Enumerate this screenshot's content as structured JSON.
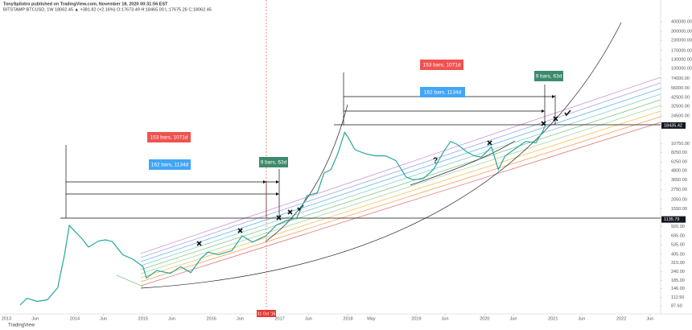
{
  "header": {
    "author_line": "TonySpilotro published on TradingView.com, November 18, 2020 00:31:56 EST",
    "symbol_line": "BITSTAMP:BTCUSD, 1W 18062.45 ▲ +381.82 (+2.16%) O:17673.49 H:18465.00 L:17675.26 C:18062.45"
  },
  "footer": {
    "brand": "TradingView"
  },
  "chart_data": {
    "type": "line",
    "log_scale": true,
    "grid": false,
    "xlim": [
      2012.906,
      2022.575
    ],
    "ylim": [
      69,
      600000
    ],
    "xticks": [
      {
        "value": 2013,
        "label": "2013"
      },
      {
        "value": 2013.42,
        "label": "Jun"
      },
      {
        "value": 2014,
        "label": "2014"
      },
      {
        "value": 2014.42,
        "label": "Jun"
      },
      {
        "value": 2015,
        "label": "2015"
      },
      {
        "value": 2015.42,
        "label": "Jun"
      },
      {
        "value": 2016,
        "label": "2016"
      },
      {
        "value": 2016.42,
        "label": "Jun"
      },
      {
        "value": 2017,
        "label": "2017"
      },
      {
        "value": 2017.42,
        "label": "Jun"
      },
      {
        "value": 2018,
        "label": "2018"
      },
      {
        "value": 2018.34,
        "label": "May"
      },
      {
        "value": 2019,
        "label": "2019"
      },
      {
        "value": 2019.42,
        "label": "Jun"
      },
      {
        "value": 2020,
        "label": "2020"
      },
      {
        "value": 2020.42,
        "label": "Jun"
      },
      {
        "value": 2021,
        "label": "2021"
      },
      {
        "value": 2021.42,
        "label": "Jun"
      },
      {
        "value": 2022,
        "label": "2022"
      },
      {
        "value": 2022.42,
        "label": "Jun"
      }
    ],
    "yticks": [
      {
        "value": 87.6,
        "label": "87.60"
      },
      {
        "value": 112.5,
        "label": "112.50"
      },
      {
        "value": 146,
        "label": "146.00"
      },
      {
        "value": 185,
        "label": "185.00"
      },
      {
        "value": 240,
        "label": "240.00"
      },
      {
        "value": 315,
        "label": "315.00"
      },
      {
        "value": 405,
        "label": "405.00"
      },
      {
        "value": 535,
        "label": "535.00"
      },
      {
        "value": 695,
        "label": "695.00"
      },
      {
        "value": 920,
        "label": "920.00"
      },
      {
        "value": 1550,
        "label": "1550.00"
      },
      {
        "value": 2050,
        "label": "2050.00"
      },
      {
        "value": 2750,
        "label": "2750.00"
      },
      {
        "value": 3650,
        "label": "3650.00"
      },
      {
        "value": 4800,
        "label": "4800.00"
      },
      {
        "value": 6250,
        "label": "6250.00"
      },
      {
        "value": 8250,
        "label": "8250.00"
      },
      {
        "value": 10750,
        "label": "10750.00"
      },
      {
        "value": 24500,
        "label": "24500.00"
      },
      {
        "value": 32500,
        "label": "32500.00"
      },
      {
        "value": 42500,
        "label": "42500.00"
      },
      {
        "value": 56000,
        "label": "56000.00"
      },
      {
        "value": 74000,
        "label": "74000.00"
      },
      {
        "value": 100000,
        "label": "100000.00"
      },
      {
        "value": 130000,
        "label": "130000.00"
      },
      {
        "value": 170000,
        "label": "170000.00"
      },
      {
        "value": 230000,
        "label": "230000.00"
      },
      {
        "value": 300000,
        "label": "300000.00"
      },
      {
        "value": 400000,
        "label": "400000.00"
      }
    ],
    "price_labels": [
      {
        "value": 18435.42,
        "label": "18435.42"
      },
      {
        "value": 1135.79,
        "label": "1135.79"
      }
    ],
    "date_marker": "31 Oct '16",
    "annotations": [
      "153 bars, 1071d",
      "162 bars, 1134d",
      "9 bars, 63d",
      "153 bars, 1071d",
      "162 bars, 1134d",
      "9 bars, 63d",
      "?"
    ],
    "series": [
      {
        "name": "BTCUSD",
        "color": "#26a69a",
        "x": [
          2013.2,
          2013.3,
          2013.45,
          2013.6,
          2013.75,
          2013.85,
          2013.92,
          2014.0,
          2014.1,
          2014.2,
          2014.35,
          2014.45,
          2014.55,
          2014.7,
          2014.85,
          2015.0,
          2015.05,
          2015.2,
          2015.4,
          2015.55,
          2015.7,
          2015.85,
          2015.95,
          2016.1,
          2016.3,
          2016.45,
          2016.6,
          2016.8,
          2016.95,
          2017.1,
          2017.25,
          2017.4,
          2017.55,
          2017.65,
          2017.75,
          2017.85,
          2017.95,
          2018.0,
          2018.1,
          2018.25,
          2018.4,
          2018.55,
          2018.7,
          2018.85,
          2018.95,
          2019.1,
          2019.25,
          2019.4,
          2019.5,
          2019.6,
          2019.75,
          2019.85,
          2019.95,
          2020.1,
          2020.2,
          2020.3,
          2020.45,
          2020.6,
          2020.75,
          2020.85,
          2020.88
        ],
        "values": [
          90,
          110,
          100,
          105,
          150,
          400,
          950,
          800,
          650,
          500,
          600,
          620,
          590,
          400,
          350,
          280,
          200,
          250,
          230,
          280,
          235,
          360,
          430,
          400,
          450,
          700,
          580,
          700,
          960,
          1100,
          1200,
          2300,
          2500,
          4500,
          5000,
          8000,
          15000,
          13000,
          9000,
          8000,
          7500,
          7500,
          6500,
          4000,
          3700,
          3800,
          5000,
          8500,
          11500,
          10500,
          8300,
          7500,
          7200,
          9800,
          5000,
          7500,
          9300,
          11500,
          11000,
          15500,
          18062.45
        ]
      }
    ]
  }
}
